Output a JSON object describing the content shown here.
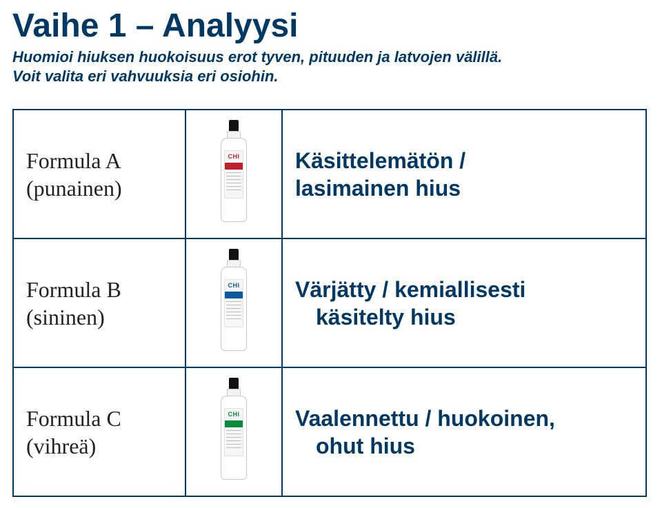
{
  "title": "Vaihe 1 – Analyysi",
  "subtitle_line1": "Huomioi hiuksen huokoisuus erot tyven, pituuden ja latvojen välillä.",
  "subtitle_line2": "Voit valita eri vahvuuksia eri osiohin.",
  "colors": {
    "heading": "#003865",
    "border": "#003865",
    "brand_red": "#c0202a",
    "brand_blue": "#0b5aa5",
    "brand_green": "#0a8a3a",
    "background": "#ffffff"
  },
  "rows": [
    {
      "label_line1": "Formula A",
      "label_line2": "(punainen)",
      "brand": "CHI",
      "brand_class": "brand-red",
      "band_class": "band-red",
      "desc_line1": "Käsittelemätön /",
      "desc_line2": "lasimainen hius",
      "desc_indent": false
    },
    {
      "label_line1": "Formula B",
      "label_line2": "(sininen)",
      "brand": "CHI",
      "brand_class": "brand-blue",
      "band_class": "band-blue",
      "desc_line1": "Värjätty / kemiallisesti",
      "desc_line2": "käsitelty hius",
      "desc_indent": true
    },
    {
      "label_line1": "Formula C",
      "label_line2": "(vihreä)",
      "brand": "CHI",
      "brand_class": "brand-green",
      "band_class": "band-green",
      "desc_line1": "Vaalennettu / huokoinen,",
      "desc_line2": "ohut hius",
      "desc_indent": true
    }
  ]
}
